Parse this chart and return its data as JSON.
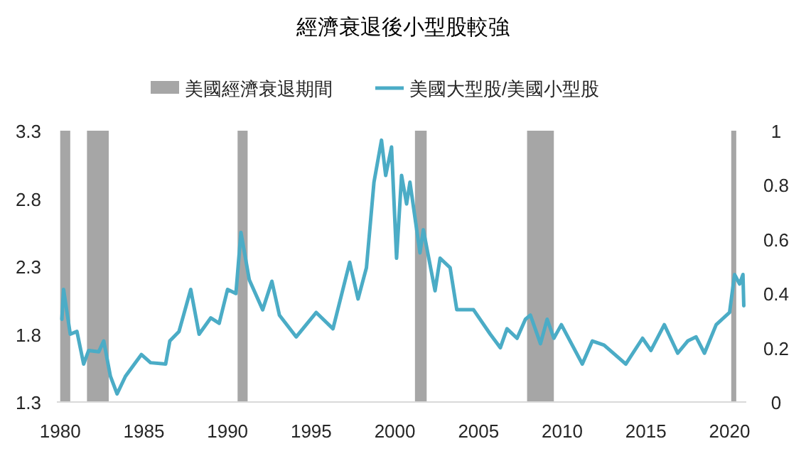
{
  "chart_data": {
    "type": "line",
    "title": "經濟衰退後小型股較強",
    "x": [
      1980.1,
      1980.2,
      1980.6,
      1981.0,
      1981.4,
      1981.7,
      1982.3,
      1982.6,
      1983.0,
      1983.4,
      1983.9,
      1984.85,
      1985.4,
      1986.3,
      1986.55,
      1987.1,
      1987.8,
      1988.3,
      1989.0,
      1989.5,
      1990.0,
      1990.5,
      1990.8,
      1991.3,
      1992.1,
      1992.65,
      1993.1,
      1994.1,
      1995.3,
      1996.3,
      1997.3,
      1997.8,
      1998.3,
      1998.75,
      1999.2,
      1999.45,
      1999.8,
      2000.1,
      2000.4,
      2000.7,
      2000.9,
      2001.5,
      2001.7,
      2002.4,
      2002.7,
      2003.3,
      2003.7,
      2004.7,
      2005.7,
      2006.3,
      2006.7,
      2007.3,
      2007.8,
      2008.1,
      2008.7,
      2009.1,
      2009.5,
      2009.95,
      2011.2,
      2011.8,
      2012.5,
      2013.8,
      2014.8,
      2015.3,
      2016.1,
      2016.9,
      2017.5,
      2018.0,
      2018.5,
      2019.2,
      2020.0,
      2020.3,
      2020.6,
      2020.8,
      2020.85
    ],
    "series": [
      {
        "name": "美國大型股/美國小型股",
        "color": "#4bacc6",
        "values": [
          1.91,
          2.13,
          1.8,
          1.82,
          1.58,
          1.68,
          1.67,
          1.75,
          1.49,
          1.36,
          1.49,
          1.65,
          1.59,
          1.58,
          1.75,
          1.82,
          2.13,
          1.8,
          1.92,
          1.88,
          2.13,
          2.1,
          2.55,
          2.2,
          1.98,
          2.19,
          1.94,
          1.78,
          1.96,
          1.84,
          2.33,
          2.06,
          2.29,
          2.92,
          3.23,
          2.97,
          3.18,
          2.36,
          2.97,
          2.76,
          2.92,
          2.4,
          2.57,
          2.12,
          2.36,
          2.29,
          1.98,
          1.98,
          1.8,
          1.7,
          1.84,
          1.77,
          1.91,
          1.94,
          1.73,
          1.91,
          1.77,
          1.87,
          1.58,
          1.75,
          1.72,
          1.58,
          1.77,
          1.68,
          1.87,
          1.66,
          1.75,
          1.78,
          1.66,
          1.87,
          1.96,
          2.24,
          2.17,
          2.24,
          2.01
        ]
      }
    ],
    "bands": [
      {
        "axis": "x",
        "from": 1980.0,
        "to": 1980.6,
        "label": "美國經濟衰退期間",
        "color": "#a6a6a6"
      },
      {
        "axis": "x",
        "from": 1981.6,
        "to": 1982.9,
        "color": "#a6a6a6"
      },
      {
        "axis": "x",
        "from": 1990.6,
        "to": 1991.2,
        "color": "#a6a6a6"
      },
      {
        "axis": "x",
        "from": 2001.2,
        "to": 2001.9,
        "color": "#a6a6a6"
      },
      {
        "axis": "x",
        "from": 2007.9,
        "to": 2009.5,
        "color": "#a6a6a6"
      },
      {
        "axis": "x",
        "from": 2020.1,
        "to": 2020.4,
        "color": "#a6a6a6"
      }
    ],
    "xlim": [
      1979.8,
      2021
    ],
    "xticks": [
      1980,
      1985,
      1990,
      1995,
      2000,
      2005,
      2010,
      2015,
      2020
    ],
    "ylim": [
      1.3,
      3.3
    ],
    "yticks": [
      1.3,
      1.8,
      2.3,
      2.8,
      3.3
    ],
    "y2lim": [
      0,
      1
    ],
    "y2ticks": [
      0,
      0.2,
      0.4,
      0.6,
      0.8,
      1
    ],
    "legend": "top",
    "grid": false,
    "marker": "none",
    "line_style": "solid"
  }
}
